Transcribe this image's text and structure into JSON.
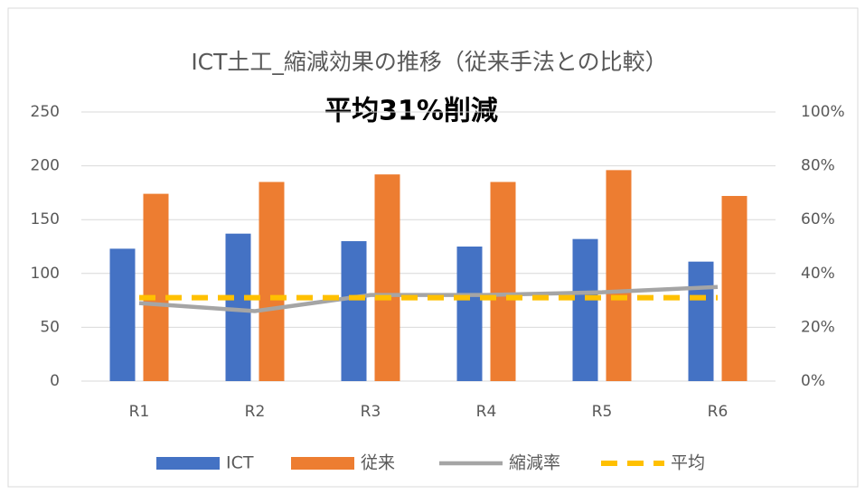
{
  "chart_data": {
    "type": "bar",
    "title": "ICT土工_縮減効果の推移（従来手法との比較）",
    "annotation": "平均31%削減",
    "categories": [
      "R1",
      "R2",
      "R3",
      "R4",
      "R5",
      "R6"
    ],
    "series": [
      {
        "name": "ICT",
        "color": "#4472c4",
        "type": "bar",
        "values": [
          123,
          137,
          130,
          125,
          132,
          111
        ]
      },
      {
        "name": "従来",
        "color": "#ed7d31",
        "type": "bar",
        "values": [
          174,
          185,
          192,
          185,
          196,
          172
        ]
      },
      {
        "name": "縮減率",
        "color": "#a5a5a5",
        "type": "line",
        "axis": "y2",
        "values": [
          29,
          26,
          32,
          32,
          33,
          35
        ]
      },
      {
        "name": "平均",
        "color": "#ffc000",
        "type": "line",
        "dashed": true,
        "axis": "y2",
        "values": [
          31,
          31,
          31,
          31,
          31,
          31
        ]
      }
    ],
    "ylim": [
      0,
      250
    ],
    "yticks": [
      0,
      50,
      100,
      150,
      200,
      250
    ],
    "y2lim": [
      0,
      100
    ],
    "y2ticks": [
      {
        "value": 0,
        "label": "0%"
      },
      {
        "value": 20,
        "label": "20%"
      },
      {
        "value": 40,
        "label": "40%"
      },
      {
        "value": 60,
        "label": "60%"
      },
      {
        "value": 80,
        "label": "80%"
      },
      {
        "value": 100,
        "label": "100%"
      }
    ],
    "grid": true,
    "legend": "bottom"
  }
}
